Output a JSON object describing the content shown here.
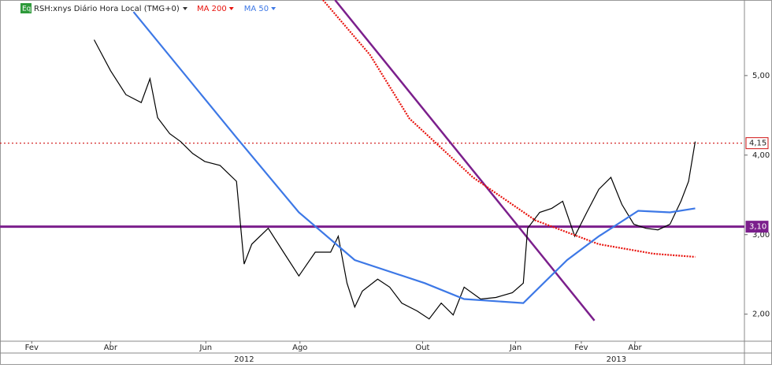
{
  "chart_data": {
    "type": "line",
    "title": "RSH:xnys Diário Hora Local (TMG+0)",
    "badge": "Eq",
    "xlim": [
      0,
      68
    ],
    "ylim": [
      1.66,
      5.95
    ],
    "yticks": [
      {
        "value": 2,
        "label": "2,00"
      },
      {
        "value": 3,
        "label": "3,00"
      },
      {
        "value": 4,
        "label": "4,00"
      },
      {
        "value": 5,
        "label": "5,00"
      }
    ],
    "xticks": [
      {
        "value": 2.9,
        "label": "Fev"
      },
      {
        "value": 10.1,
        "label": "Abr"
      },
      {
        "value": 18.8,
        "label": "Jun"
      },
      {
        "value": 27.4,
        "label": "Ago"
      },
      {
        "value": 38.6,
        "label": "Out"
      },
      {
        "value": 47.1,
        "label": "Jan"
      },
      {
        "value": 53.1,
        "label": "Fev"
      },
      {
        "value": 58.0,
        "label": "Abr"
      }
    ],
    "years": [
      {
        "value": 22.3,
        "label": "2012"
      },
      {
        "value": 56.3,
        "label": "2013"
      }
    ],
    "series": [
      {
        "name": "RSH:xnys",
        "color": "#000000",
        "x": [
          8.6,
          10.1,
          11.5,
          12.9,
          13.7,
          14.4,
          15.5,
          16.5,
          17.6,
          18.7,
          20.1,
          21.6,
          22.3,
          23.0,
          24.5,
          25.9,
          27.3,
          28.8,
          30.2,
          30.9,
          31.7,
          32.4,
          33.1,
          34.5,
          35.6,
          36.7,
          38.1,
          39.2,
          40.3,
          41.4,
          42.4,
          43.9,
          45.3,
          46.8,
          47.8,
          48.2,
          49.3,
          50.4,
          51.4,
          52.5,
          53.6,
          54.7,
          55.8,
          56.8,
          57.9,
          59.0,
          60.1,
          61.2,
          62.2,
          62.9,
          63.5
        ],
        "values": [
          5.45,
          5.06,
          4.76,
          4.66,
          4.96,
          4.47,
          4.27,
          4.17,
          4.02,
          3.92,
          3.87,
          3.67,
          2.63,
          2.88,
          3.08,
          2.78,
          2.48,
          2.78,
          2.78,
          2.98,
          2.39,
          2.09,
          2.29,
          2.44,
          2.34,
          2.14,
          2.04,
          1.94,
          2.14,
          1.99,
          2.34,
          2.19,
          2.21,
          2.27,
          2.39,
          3.08,
          3.28,
          3.33,
          3.42,
          2.98,
          3.28,
          3.57,
          3.72,
          3.38,
          3.13,
          3.08,
          3.06,
          3.13,
          3.42,
          3.67,
          4.17
        ]
      },
      {
        "name": "MA 200",
        "color": "#e8120c",
        "dotted": true,
        "x": [
          29.5,
          33.8,
          37.4,
          43.2,
          48.9,
          54.7,
          59.7,
          63.5
        ],
        "values": [
          5.95,
          5.26,
          4.46,
          3.72,
          3.18,
          2.88,
          2.76,
          2.72
        ]
      },
      {
        "name": "MA 50",
        "color": "#3d78e6",
        "x": [
          12.2,
          21.6,
          27.3,
          32.4,
          38.8,
          42.4,
          47.8,
          51.8,
          54.7,
          58.3,
          61.2,
          63.5
        ],
        "values": [
          5.8,
          4.22,
          3.28,
          2.68,
          2.39,
          2.19,
          2.14,
          2.68,
          2.98,
          3.3,
          3.28,
          3.33
        ]
      }
    ],
    "trendline": {
      "color": "#7b1f8c",
      "x": [
        30.6,
        54.3
      ],
      "values": [
        5.95,
        1.92
      ]
    },
    "hlines": [
      {
        "value": 3.1,
        "label": "3,10",
        "color": "#7b1f8c"
      },
      {
        "value": 4.15,
        "label": "4,15",
        "color": "#d01010"
      }
    ]
  }
}
